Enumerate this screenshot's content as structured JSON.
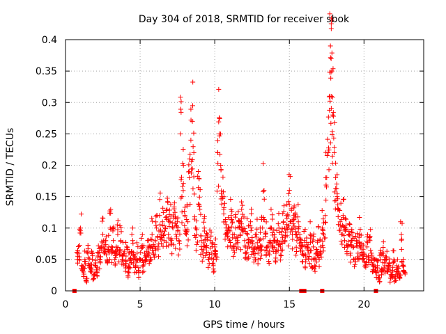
{
  "chart_data": {
    "type": "scatter",
    "title": "Day 304 of 2018, SRMTID for receiver sbok",
    "xlabel": "GPS time / hours",
    "ylabel": "SRMTID / TECUs",
    "xlim": [
      0,
      24
    ],
    "ylim": [
      0,
      0.4
    ],
    "xticks": [
      0,
      5,
      10,
      15,
      20
    ],
    "xtick_labels": [
      "0",
      "5",
      "10",
      "15",
      "20"
    ],
    "yticks": [
      0,
      0.05,
      0.1,
      0.15,
      0.2,
      0.25,
      0.3,
      0.35,
      0.4
    ],
    "ytick_labels": [
      "0",
      "0.05",
      "0.1",
      "0.15",
      "0.2",
      "0.25",
      "0.3",
      "0.35",
      "0.4"
    ],
    "grid": true,
    "marker": "plus",
    "color": "#ff0000",
    "series": [
      {
        "name": "SRMTID",
        "points": [
          [
            0.8,
            0.05
          ],
          [
            0.9,
            0.06
          ],
          [
            1.0,
            0.1
          ],
          [
            1.1,
            0.04
          ],
          [
            1.2,
            0.03
          ],
          [
            1.3,
            0.05
          ],
          [
            1.4,
            0.02
          ],
          [
            1.5,
            0.06
          ],
          [
            1.6,
            0.04
          ],
          [
            1.7,
            0.03
          ],
          [
            1.8,
            0.05
          ],
          [
            1.9,
            0.02
          ],
          [
            2.0,
            0.04
          ],
          [
            2.1,
            0.03
          ],
          [
            2.2,
            0.06
          ],
          [
            2.3,
            0.05
          ],
          [
            2.4,
            0.07
          ],
          [
            2.5,
            0.09
          ],
          [
            2.6,
            0.06
          ],
          [
            2.7,
            0.08
          ],
          [
            2.8,
            0.05
          ],
          [
            2.9,
            0.07
          ],
          [
            3.0,
            0.1
          ],
          [
            3.1,
            0.06
          ],
          [
            3.2,
            0.08
          ],
          [
            3.3,
            0.05
          ],
          [
            3.4,
            0.07
          ],
          [
            3.5,
            0.09
          ],
          [
            3.6,
            0.06
          ],
          [
            3.7,
            0.08
          ],
          [
            3.8,
            0.05
          ],
          [
            3.9,
            0.06
          ],
          [
            4.0,
            0.04
          ],
          [
            4.1,
            0.07
          ],
          [
            4.2,
            0.03
          ],
          [
            4.3,
            0.05
          ],
          [
            4.4,
            0.06
          ],
          [
            4.5,
            0.08
          ],
          [
            4.6,
            0.05
          ],
          [
            4.7,
            0.04
          ],
          [
            4.8,
            0.06
          ],
          [
            4.9,
            0.03
          ],
          [
            5.0,
            0.05
          ],
          [
            5.1,
            0.07
          ],
          [
            5.2,
            0.04
          ],
          [
            5.3,
            0.06
          ],
          [
            5.4,
            0.05
          ],
          [
            5.5,
            0.08
          ],
          [
            5.6,
            0.06
          ],
          [
            5.7,
            0.07
          ],
          [
            5.8,
            0.09
          ],
          [
            5.9,
            0.06
          ],
          [
            6.0,
            0.08
          ],
          [
            6.1,
            0.1
          ],
          [
            6.2,
            0.07
          ],
          [
            6.3,
            0.12
          ],
          [
            6.4,
            0.09
          ],
          [
            6.5,
            0.11
          ],
          [
            6.6,
            0.08
          ],
          [
            6.7,
            0.1
          ],
          [
            6.8,
            0.13
          ],
          [
            6.9,
            0.09
          ],
          [
            7.0,
            0.11
          ],
          [
            7.1,
            0.08
          ],
          [
            7.2,
            0.1
          ],
          [
            7.3,
            0.14
          ],
          [
            7.4,
            0.09
          ],
          [
            7.5,
            0.11
          ],
          [
            7.6,
            0.08
          ],
          [
            7.7,
            0.25
          ],
          [
            7.8,
            0.15
          ],
          [
            7.9,
            0.2
          ],
          [
            8.0,
            0.12
          ],
          [
            8.1,
            0.09
          ],
          [
            8.2,
            0.11
          ],
          [
            8.3,
            0.18
          ],
          [
            8.4,
            0.24
          ],
          [
            8.5,
            0.27
          ],
          [
            8.6,
            0.22
          ],
          [
            8.7,
            0.1
          ],
          [
            8.8,
            0.09
          ],
          [
            8.9,
            0.19
          ],
          [
            9.0,
            0.13
          ],
          [
            9.1,
            0.08
          ],
          [
            9.2,
            0.06
          ],
          [
            9.3,
            0.1
          ],
          [
            9.4,
            0.07
          ],
          [
            9.5,
            0.09
          ],
          [
            9.6,
            0.05
          ],
          [
            9.7,
            0.08
          ],
          [
            9.8,
            0.06
          ],
          [
            9.9,
            0.04
          ],
          [
            10.0,
            0.07
          ],
          [
            10.1,
            0.05
          ],
          [
            10.2,
            0.22
          ],
          [
            10.3,
            0.25
          ],
          [
            10.4,
            0.2
          ],
          [
            10.5,
            0.15
          ],
          [
            10.6,
            0.13
          ],
          [
            10.7,
            0.11
          ],
          [
            10.8,
            0.09
          ],
          [
            10.9,
            0.1
          ],
          [
            11.0,
            0.08
          ],
          [
            11.1,
            0.12
          ],
          [
            11.2,
            0.09
          ],
          [
            11.3,
            0.07
          ],
          [
            11.4,
            0.1
          ],
          [
            11.5,
            0.08
          ],
          [
            11.6,
            0.11
          ],
          [
            11.7,
            0.09
          ],
          [
            11.8,
            0.13
          ],
          [
            11.9,
            0.1
          ],
          [
            12.0,
            0.08
          ],
          [
            12.1,
            0.06
          ],
          [
            12.2,
            0.09
          ],
          [
            12.3,
            0.07
          ],
          [
            12.4,
            0.11
          ],
          [
            12.5,
            0.08
          ],
          [
            12.6,
            0.06
          ],
          [
            12.7,
            0.07
          ],
          [
            12.8,
            0.09
          ],
          [
            12.9,
            0.06
          ],
          [
            13.0,
            0.08
          ],
          [
            13.1,
            0.07
          ],
          [
            13.2,
            0.1
          ],
          [
            13.3,
            0.16
          ],
          [
            13.4,
            0.09
          ],
          [
            13.5,
            0.07
          ],
          [
            13.6,
            0.06
          ],
          [
            13.7,
            0.08
          ],
          [
            13.8,
            0.1
          ],
          [
            13.9,
            0.07
          ],
          [
            14.0,
            0.09
          ],
          [
            14.1,
            0.06
          ],
          [
            14.2,
            0.08
          ],
          [
            14.3,
            0.1
          ],
          [
            14.4,
            0.07
          ],
          [
            14.5,
            0.09
          ],
          [
            14.6,
            0.11
          ],
          [
            14.7,
            0.08
          ],
          [
            14.8,
            0.12
          ],
          [
            14.9,
            0.1
          ],
          [
            15.0,
            0.16
          ],
          [
            15.1,
            0.11
          ],
          [
            15.2,
            0.09
          ],
          [
            15.3,
            0.12
          ],
          [
            15.4,
            0.1
          ],
          [
            15.5,
            0.08
          ],
          [
            15.6,
            0.11
          ],
          [
            15.7,
            0.09
          ],
          [
            15.8,
            0.07
          ],
          [
            15.9,
            0.06
          ],
          [
            16.0,
            0.08
          ],
          [
            16.1,
            0.05
          ],
          [
            16.2,
            0.07
          ],
          [
            16.3,
            0.06
          ],
          [
            16.4,
            0.09
          ],
          [
            16.5,
            0.05
          ],
          [
            16.6,
            0.07
          ],
          [
            16.7,
            0.04
          ],
          [
            16.8,
            0.06
          ],
          [
            16.9,
            0.08
          ],
          [
            17.0,
            0.05
          ],
          [
            17.1,
            0.07
          ],
          [
            17.2,
            0.1
          ],
          [
            17.3,
            0.09
          ],
          [
            17.4,
            0.12
          ],
          [
            17.5,
            0.18
          ],
          [
            17.6,
            0.22
          ],
          [
            17.7,
            0.31
          ],
          [
            17.75,
            0.39
          ],
          [
            17.8,
            0.37
          ],
          [
            17.85,
            0.35
          ],
          [
            17.9,
            0.28
          ],
          [
            18.0,
            0.22
          ],
          [
            18.1,
            0.18
          ],
          [
            18.2,
            0.15
          ],
          [
            18.3,
            0.13
          ],
          [
            18.4,
            0.11
          ],
          [
            18.5,
            0.09
          ],
          [
            18.6,
            0.12
          ],
          [
            18.7,
            0.08
          ],
          [
            18.8,
            0.1
          ],
          [
            18.9,
            0.07
          ],
          [
            19.0,
            0.09
          ],
          [
            19.1,
            0.06
          ],
          [
            19.2,
            0.08
          ],
          [
            19.3,
            0.07
          ],
          [
            19.4,
            0.05
          ],
          [
            19.5,
            0.08
          ],
          [
            19.6,
            0.06
          ],
          [
            19.7,
            0.09
          ],
          [
            19.8,
            0.07
          ],
          [
            19.9,
            0.05
          ],
          [
            20.0,
            0.06
          ],
          [
            20.1,
            0.04
          ],
          [
            20.2,
            0.07
          ],
          [
            20.3,
            0.05
          ],
          [
            20.4,
            0.08
          ],
          [
            20.5,
            0.06
          ],
          [
            20.6,
            0.04
          ],
          [
            20.7,
            0.05
          ],
          [
            20.8,
            0.03
          ],
          [
            20.9,
            0.04
          ],
          [
            21.0,
            0.02
          ],
          [
            21.1,
            0.05
          ],
          [
            21.2,
            0.03
          ],
          [
            21.3,
            0.06
          ],
          [
            21.4,
            0.04
          ],
          [
            21.5,
            0.05
          ],
          [
            21.6,
            0.03
          ],
          [
            21.7,
            0.04
          ],
          [
            21.8,
            0.02
          ],
          [
            21.9,
            0.03
          ],
          [
            22.0,
            0.05
          ],
          [
            22.1,
            0.02
          ],
          [
            22.2,
            0.04
          ],
          [
            22.3,
            0.03
          ],
          [
            22.4,
            0.02
          ],
          [
            22.5,
            0.09
          ],
          [
            22.6,
            0.04
          ],
          [
            22.7,
            0.03
          ]
        ],
        "zero_points": [
          0.6,
          15.8,
          16.0,
          17.2,
          20.8
        ]
      }
    ]
  }
}
